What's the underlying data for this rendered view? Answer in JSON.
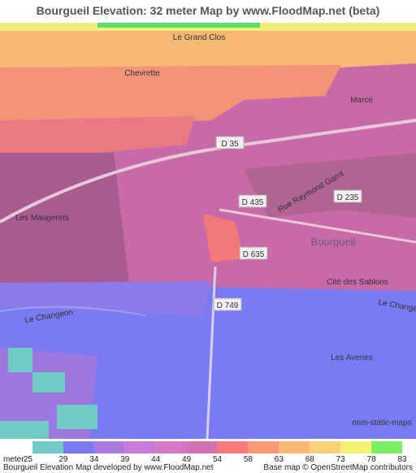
{
  "header": {
    "title": "Bourgueil Elevation: 32 meter Map by www.FloodMap.net (beta)"
  },
  "map": {
    "labels": [
      "Le Grand Clos",
      "Chevrette",
      "Marcé",
      "D 35",
      "Rue Raymond Garrit",
      "D 435",
      "D 235",
      "Les Maugerets",
      "Bourgueil",
      "D 635",
      "Cité des Sablons",
      "D 749",
      "Le Changeon",
      "Le Change",
      "Les Averies",
      "osm-static-maps"
    ]
  },
  "legend": {
    "unit": "meter",
    "values": [
      25,
      29,
      34,
      39,
      44,
      49,
      54,
      58,
      63,
      68,
      73,
      78,
      83
    ],
    "colors": [
      "#70cbc4",
      "#7a7af2",
      "#aa7ae0",
      "#c87ad8",
      "#d478c6",
      "#d072b0",
      "#f67a7a",
      "#f79a78",
      "#f7b874",
      "#f7d274",
      "#f2f274",
      "#7cee62",
      "#5ede6a"
    ]
  },
  "footer": {
    "left": "Bourgueil Elevation Map developed by www.FloodMap.net",
    "right": "Base map © OpenStreetMap contributors"
  }
}
